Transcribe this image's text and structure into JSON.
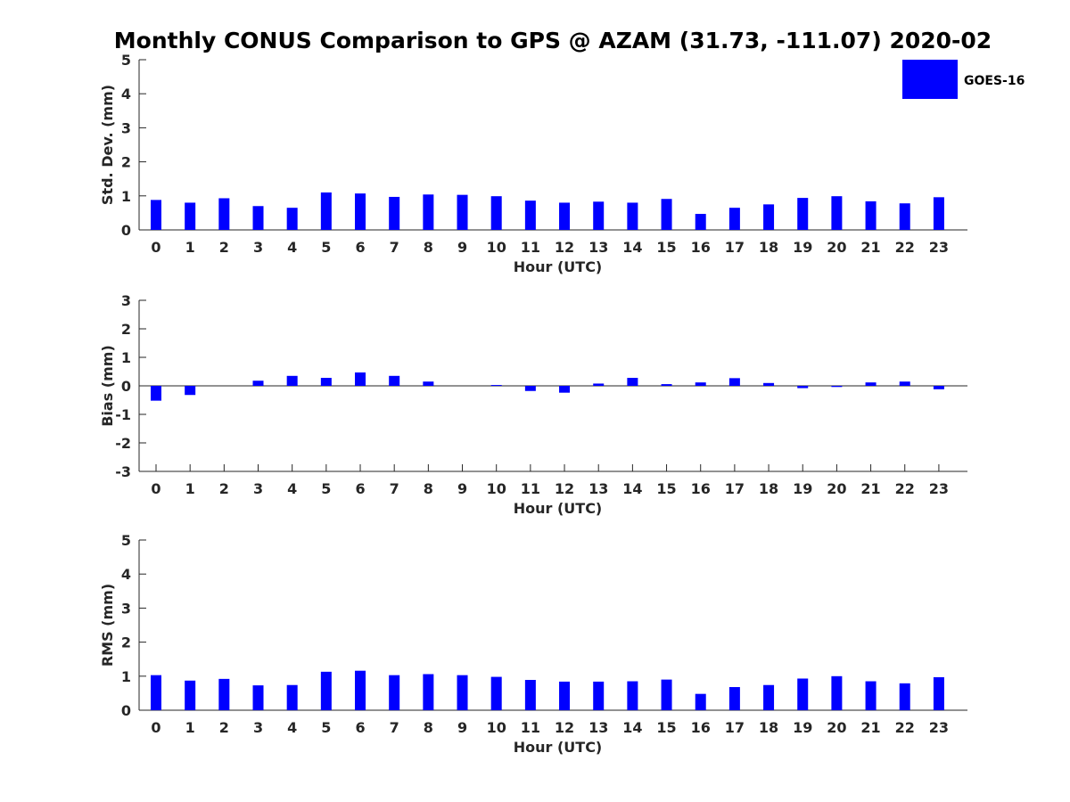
{
  "figure": {
    "title": "Monthly CONUS Comparison to GPS @ AZAM (31.73, -111.07) 2020-02",
    "legend": {
      "label": "GOES-16",
      "color": "#0000ff",
      "placement": "top-right"
    }
  },
  "chart_data": [
    {
      "type": "bar",
      "name": "std-dev",
      "xlabel": "Hour (UTC)",
      "ylabel": "Std. Dev. (mm)",
      "ylim": [
        0,
        5
      ],
      "yticks": [
        0,
        1,
        2,
        3,
        4,
        5
      ],
      "categories": [
        "0",
        "1",
        "2",
        "3",
        "4",
        "5",
        "6",
        "7",
        "8",
        "9",
        "10",
        "11",
        "12",
        "13",
        "14",
        "15",
        "16",
        "17",
        "18",
        "19",
        "20",
        "21",
        "22",
        "23"
      ],
      "series": [
        {
          "name": "GOES-16",
          "color": "#0000ff",
          "values": [
            0.88,
            0.8,
            0.93,
            0.7,
            0.65,
            1.1,
            1.07,
            0.97,
            1.04,
            1.03,
            0.99,
            0.86,
            0.8,
            0.83,
            0.8,
            0.91,
            0.47,
            0.65,
            0.75,
            0.94,
            0.99,
            0.84,
            0.78,
            0.96
          ]
        }
      ]
    },
    {
      "type": "bar",
      "name": "bias",
      "xlabel": "Hour (UTC)",
      "ylabel": "Bias (mm)",
      "ylim": [
        -3,
        3
      ],
      "yticks": [
        -3,
        -2,
        -1,
        0,
        1,
        2,
        3
      ],
      "categories": [
        "0",
        "1",
        "2",
        "3",
        "4",
        "5",
        "6",
        "7",
        "8",
        "9",
        "10",
        "11",
        "12",
        "13",
        "14",
        "15",
        "16",
        "17",
        "18",
        "19",
        "20",
        "21",
        "22",
        "23"
      ],
      "series": [
        {
          "name": "GOES-16",
          "color": "#0000ff",
          "values": [
            -0.52,
            -0.32,
            0.0,
            0.18,
            0.35,
            0.28,
            0.47,
            0.35,
            0.15,
            0.0,
            0.03,
            -0.18,
            -0.24,
            0.08,
            0.28,
            0.06,
            0.12,
            0.27,
            0.1,
            -0.08,
            -0.04,
            0.12,
            0.15,
            -0.12
          ]
        }
      ]
    },
    {
      "type": "bar",
      "name": "rms",
      "xlabel": "Hour (UTC)",
      "ylabel": "RMS (mm)",
      "ylim": [
        0,
        5
      ],
      "yticks": [
        0,
        1,
        2,
        3,
        4,
        5
      ],
      "categories": [
        "0",
        "1",
        "2",
        "3",
        "4",
        "5",
        "6",
        "7",
        "8",
        "9",
        "10",
        "11",
        "12",
        "13",
        "14",
        "15",
        "16",
        "17",
        "18",
        "19",
        "20",
        "21",
        "22",
        "23"
      ],
      "series": [
        {
          "name": "GOES-16",
          "color": "#0000ff",
          "values": [
            1.03,
            0.87,
            0.92,
            0.73,
            0.74,
            1.13,
            1.16,
            1.03,
            1.06,
            1.03,
            0.98,
            0.89,
            0.84,
            0.84,
            0.85,
            0.9,
            0.48,
            0.68,
            0.74,
            0.93,
            1.0,
            0.85,
            0.79,
            0.97
          ]
        }
      ]
    }
  ]
}
